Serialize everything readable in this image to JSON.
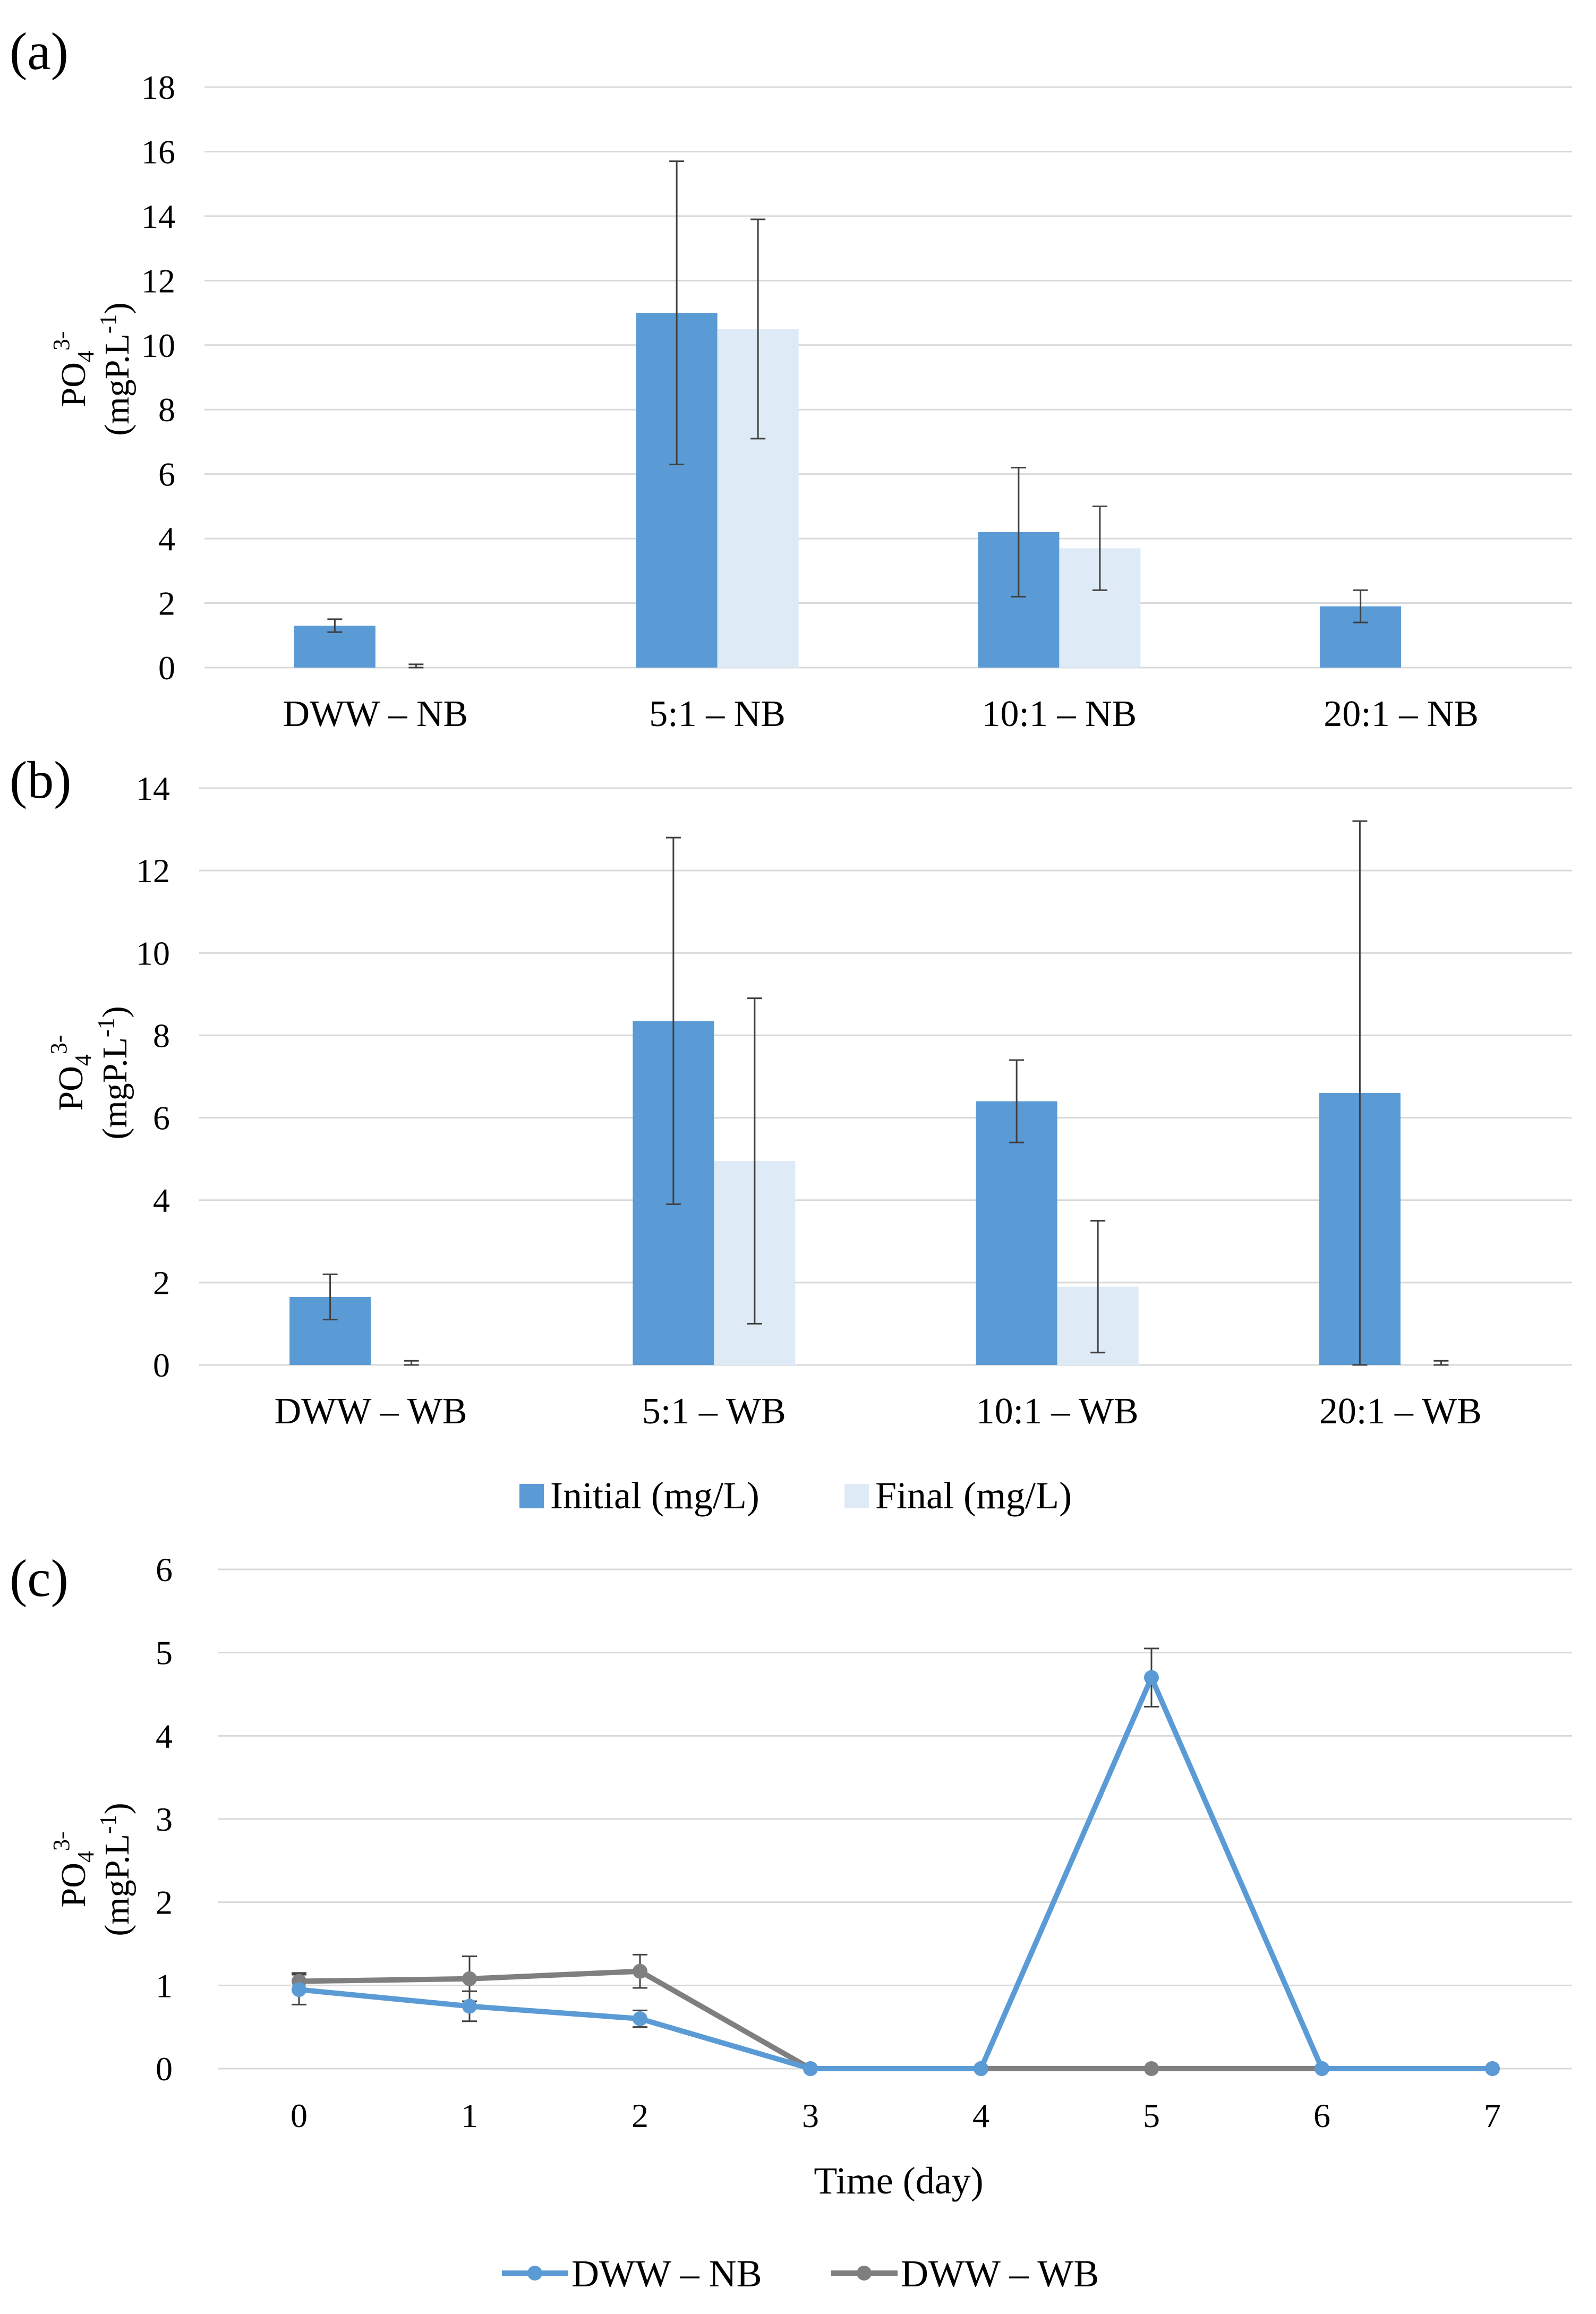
{
  "chart_data": [
    {
      "type": "bar",
      "panel_label": "(a)",
      "ylabel": {
        "text": "PO",
        "sub": "4",
        "sup": "3-",
        "unit_prefix": "(mgP.L",
        "unit_sup": "-1",
        "unit_suffix": ")"
      },
      "ylim": [
        0,
        18
      ],
      "yticks": [
        "0",
        "2",
        "4",
        "6",
        "8",
        "10",
        "12",
        "14",
        "16",
        "18"
      ],
      "grid": true,
      "categories": [
        "DWW – NB",
        "5:1 – NB",
        "10:1 – NB",
        "20:1 – NB"
      ],
      "series": [
        {
          "name": "Initial (mg/L)",
          "color": "#5b9bd5",
          "values": [
            1.3,
            11.0,
            4.2,
            1.9
          ],
          "errors": [
            0.2,
            4.7,
            2.0,
            0.5
          ]
        },
        {
          "name": "Final (mg/L)",
          "color": "#deebf7",
          "values": [
            0,
            10.5,
            3.7,
            0
          ],
          "errors": [
            0.1,
            3.4,
            1.3,
            0
          ]
        }
      ]
    },
    {
      "type": "bar",
      "panel_label": "(b)",
      "ylabel": {
        "text": "PO",
        "sub": "4",
        "sup": "3-",
        "unit_prefix": "(mgP.L",
        "unit_sup": "-1",
        "unit_suffix": ")"
      },
      "ylim": [
        0,
        14
      ],
      "yticks": [
        "0",
        "2",
        "4",
        "6",
        "8",
        "10",
        "12",
        "14"
      ],
      "grid": true,
      "categories": [
        "DWW – WB",
        "5:1 – WB",
        "10:1 – WB",
        "20:1 – WB"
      ],
      "series": [
        {
          "name": "Initial (mg/L)",
          "color": "#5b9bd5",
          "values": [
            1.65,
            8.35,
            6.4,
            6.6
          ],
          "errors": [
            0.55,
            4.45,
            1.0,
            6.6
          ]
        },
        {
          "name": "Final (mg/L)",
          "color": "#deebf7",
          "values": [
            0,
            4.95,
            1.9,
            0
          ],
          "errors": [
            0.1,
            3.95,
            1.6,
            0.1
          ]
        }
      ],
      "legend": {
        "position": "bottom",
        "entries": [
          "Initial (mg/L)",
          "Final (mg/L)"
        ]
      }
    },
    {
      "type": "line",
      "panel_label": "(c)",
      "ylabel": {
        "text": "PO",
        "sub": "4",
        "sup": "3-",
        "unit_prefix": "(mgP.L",
        "unit_sup": "-1",
        "unit_suffix": ")"
      },
      "xlabel": "Time (day)",
      "x": [
        0,
        1,
        2,
        3,
        4,
        5,
        6,
        7
      ],
      "xticks": [
        "0",
        "1",
        "2",
        "3",
        "4",
        "5",
        "6",
        "7"
      ],
      "ylim": [
        0,
        6
      ],
      "yticks": [
        "0",
        "1",
        "2",
        "3",
        "4",
        "5",
        "6"
      ],
      "grid": true,
      "series": [
        {
          "name": "DWW – NB",
          "color": "#5b9bd5",
          "values": [
            0.95,
            0.75,
            0.6,
            0,
            0,
            4.7,
            0,
            0
          ],
          "errors": [
            0.18,
            0.18,
            0.1,
            0,
            0,
            0.35,
            0,
            0
          ]
        },
        {
          "name": "DWW – WB",
          "color": "#7f7f7f",
          "values": [
            1.05,
            1.08,
            1.17,
            0,
            0,
            0,
            0,
            0
          ],
          "errors": [
            0.1,
            0.27,
            0.2,
            0,
            0,
            0,
            0,
            0
          ]
        }
      ],
      "legend": {
        "position": "bottom",
        "entries": [
          "DWW – NB",
          "DWW – WB"
        ]
      }
    }
  ]
}
